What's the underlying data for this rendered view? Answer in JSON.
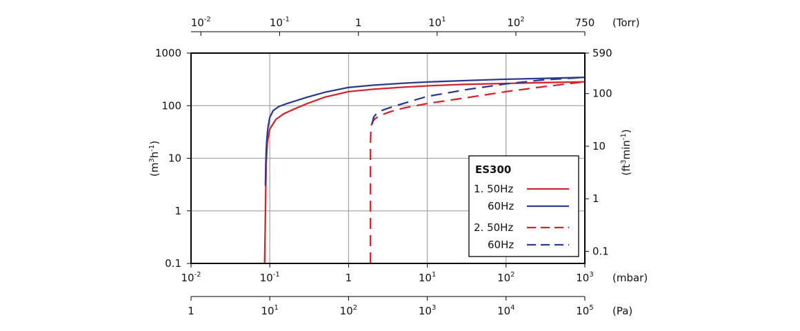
{
  "chart_data": {
    "type": "line",
    "title": "",
    "x_axes": {
      "bottom_primary": {
        "unit": "(mbar)",
        "scale": "log",
        "range": [
          0.01,
          1000
        ],
        "ticks": [
          {
            "base": "10",
            "exp": "-2"
          },
          {
            "base": "10",
            "exp": "-1"
          },
          {
            "base": "1",
            "exp": ""
          },
          {
            "base": "10",
            "exp": "1"
          },
          {
            "base": "10",
            "exp": "2"
          },
          {
            "base": "10",
            "exp": "3"
          }
        ]
      },
      "bottom_secondary": {
        "unit": "(Pa)",
        "scale": "log",
        "range": [
          1,
          100000
        ],
        "ticks": [
          {
            "base": "1",
            "exp": ""
          },
          {
            "base": "10",
            "exp": "1"
          },
          {
            "base": "10",
            "exp": "2"
          },
          {
            "base": "10",
            "exp": "3"
          },
          {
            "base": "10",
            "exp": "4"
          },
          {
            "base": "10",
            "exp": "5"
          }
        ]
      },
      "top": {
        "unit": "(Torr)",
        "scale": "log",
        "range": [
          0.0075,
          750
        ],
        "ticks": [
          {
            "base": "10",
            "exp": "-2",
            "value": 0.01
          },
          {
            "base": "10",
            "exp": "-1",
            "value": 0.1
          },
          {
            "base": "1",
            "exp": "",
            "value": 1
          },
          {
            "base": "10",
            "exp": "1",
            "value": 10
          },
          {
            "base": "10",
            "exp": "2",
            "value": 100
          },
          {
            "base": "750",
            "exp": "",
            "value": 750
          }
        ]
      }
    },
    "y_axes": {
      "left": {
        "label_base": "(m",
        "label_sup1": "3",
        "label_mid": "h",
        "label_sup2": "-1",
        "label_end": ")",
        "scale": "log",
        "range": [
          0.1,
          1000
        ],
        "ticks": [
          "0.1",
          "1",
          "10",
          "100",
          "1000"
        ]
      },
      "right": {
        "label_base": "(ft",
        "label_sup1": "3",
        "label_mid": "min",
        "label_sup2": "-1",
        "label_end": ")",
        "scale": "log",
        "range": [
          0.0589,
          589
        ],
        "ticks": [
          {
            "label": "0.1",
            "value": 0.1
          },
          {
            "label": "1",
            "value": 1
          },
          {
            "label": "10",
            "value": 10
          },
          {
            "label": "100",
            "value": 100
          },
          {
            "label": "590",
            "value": 590
          }
        ]
      }
    },
    "grid": true,
    "legend": {
      "title": "ES300",
      "placement": "bottom-right",
      "entries": [
        {
          "label": "1. 50Hz",
          "color": "#d0262e",
          "dash": "solid"
        },
        {
          "label": "60Hz",
          "color": "#2e3a8c",
          "dash": "solid"
        },
        {
          "label": "2. 50Hz",
          "color": "#d0262e",
          "dash": "dashed"
        },
        {
          "label": "60Hz",
          "color": "#2e3a8c",
          "dash": "dashed"
        }
      ]
    },
    "series": [
      {
        "legend_index": 0,
        "color": "#d0262e",
        "dash": "solid",
        "x": [
          0.086,
          0.087,
          0.088,
          0.089,
          0.09,
          0.093,
          0.1,
          0.12,
          0.15,
          0.2,
          0.3,
          0.5,
          1,
          2,
          5,
          10,
          30,
          100,
          300,
          1000
        ],
        "y": [
          0.1,
          0.3,
          1,
          3,
          8,
          20,
          36,
          55,
          70,
          85,
          110,
          145,
          185,
          205,
          225,
          238,
          255,
          265,
          275,
          285
        ]
      },
      {
        "legend_index": 1,
        "color": "#2e3a8c",
        "dash": "solid",
        "x": [
          0.088,
          0.089,
          0.09,
          0.092,
          0.095,
          0.1,
          0.11,
          0.13,
          0.16,
          0.2,
          0.3,
          0.5,
          1,
          2,
          5,
          10,
          30,
          100,
          300,
          1000
        ],
        "y": [
          3,
          8,
          14,
          25,
          40,
          60,
          80,
          96,
          108,
          120,
          145,
          180,
          222,
          245,
          268,
          282,
          300,
          318,
          330,
          345
        ]
      },
      {
        "legend_index": 2,
        "color": "#d0262e",
        "dash": "dashed",
        "x": [
          1.9,
          1.9,
          1.9,
          1.9,
          1.92,
          1.95,
          2.0,
          2.1,
          2.3,
          2.7,
          3.5,
          5,
          10,
          30,
          100,
          300,
          1000
        ],
        "y": [
          0.1,
          1,
          5,
          20,
          35,
          42,
          48,
          54,
          60,
          68,
          78,
          90,
          110,
          140,
          185,
          230,
          285
        ]
      },
      {
        "legend_index": 3,
        "color": "#2e3a8c",
        "dash": "dashed",
        "x": [
          2.0,
          2.05,
          2.1,
          2.3,
          2.6,
          3.0,
          4,
          6,
          10,
          30,
          100,
          300,
          1000
        ],
        "y": [
          45,
          55,
          62,
          72,
          80,
          87,
          100,
          120,
          150,
          200,
          260,
          310,
          345
        ]
      }
    ]
  }
}
